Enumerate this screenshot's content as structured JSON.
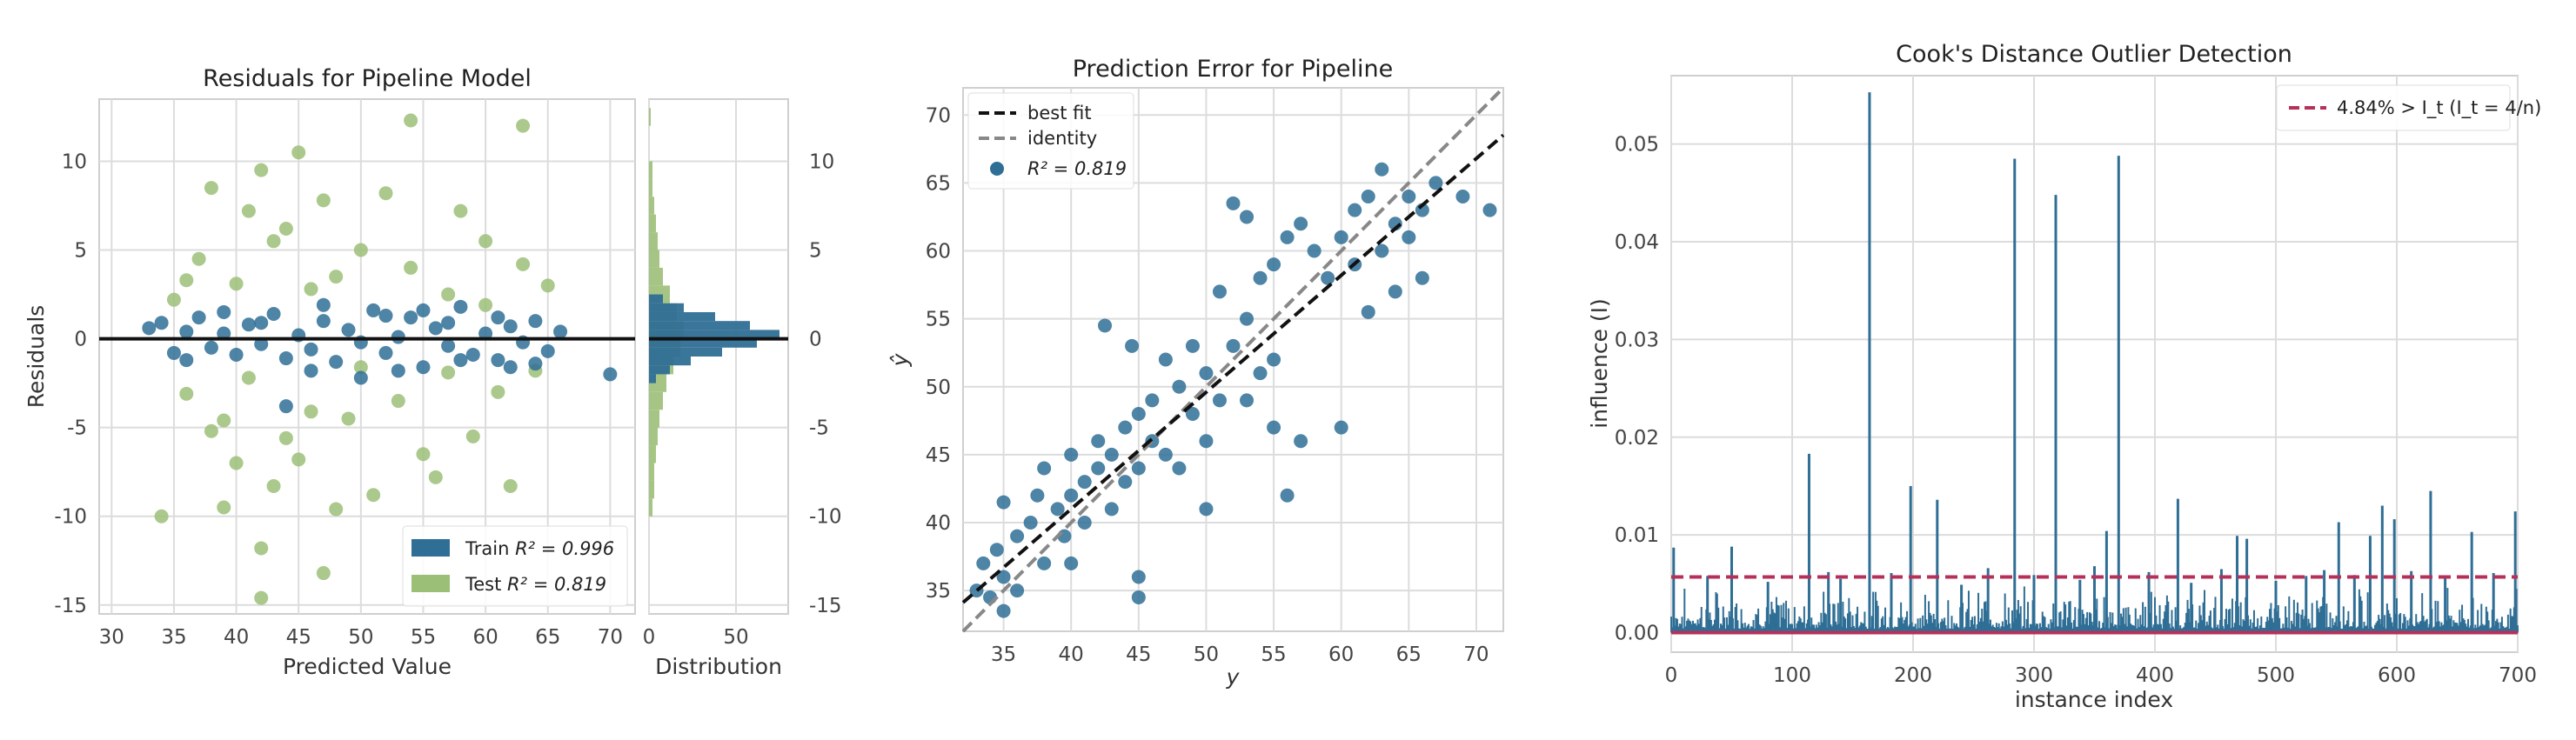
{
  "chart_data": [
    {
      "type": "scatter",
      "title": "Residuals for Pipeline Model",
      "xlabel": "Predicted Value",
      "ylabel": "Residuals",
      "xlim": [
        29,
        72
      ],
      "ylim": [
        -15.5,
        13.5
      ],
      "xticks": [
        "30",
        "35",
        "40",
        "45",
        "50",
        "55",
        "60",
        "65",
        "70"
      ],
      "yticks": [
        "-15",
        "-10",
        "-5",
        "0",
        "5",
        "10"
      ],
      "grid": true,
      "legend_position": "lower-right",
      "hline": 0,
      "series": [
        {
          "name": "Train $R^2 = 0.996$",
          "label_main": "Train ",
          "label_math": "R² = 0.996",
          "color": "#2f6e95",
          "points": [
            [
              33,
              0.6
            ],
            [
              34,
              0.9
            ],
            [
              35,
              -0.8
            ],
            [
              36,
              0.4
            ],
            [
              37,
              1.2
            ],
            [
              38,
              -0.5
            ],
            [
              39,
              0.3
            ],
            [
              40,
              -0.9
            ],
            [
              41,
              0.8
            ],
            [
              42,
              -0.3
            ],
            [
              43,
              1.4
            ],
            [
              44,
              -1.1
            ],
            [
              45,
              0.2
            ],
            [
              46,
              -0.6
            ],
            [
              47,
              1.0
            ],
            [
              48,
              -1.3
            ],
            [
              49,
              0.5
            ],
            [
              50,
              -0.2
            ],
            [
              51,
              1.6
            ],
            [
              52,
              -0.8
            ],
            [
              53,
              0.1
            ],
            [
              54,
              1.2
            ],
            [
              55,
              -1.6
            ],
            [
              56,
              0.6
            ],
            [
              57,
              -0.4
            ],
            [
              58,
              1.8
            ],
            [
              59,
              -0.9
            ],
            [
              60,
              0.3
            ],
            [
              61,
              -1.2
            ],
            [
              62,
              0.7
            ],
            [
              63,
              -0.2
            ],
            [
              64,
              1.0
            ],
            [
              65,
              -0.7
            ],
            [
              66,
              0.4
            ],
            [
              36,
              -1.2
            ],
            [
              39,
              1.5
            ],
            [
              44,
              -3.8
            ],
            [
              47,
              1.9
            ],
            [
              50,
              -2.2
            ],
            [
              53,
              -1.8
            ],
            [
              55,
              1.6
            ],
            [
              58,
              -1.2
            ],
            [
              62,
              -1.6
            ],
            [
              64,
              -1.4
            ],
            [
              70,
              -2.0
            ],
            [
              42,
              0.9
            ],
            [
              46,
              -1.8
            ],
            [
              52,
              1.3
            ],
            [
              57,
              0.9
            ],
            [
              61,
              1.2
            ]
          ]
        },
        {
          "name": "Test $R^2 = 0.819$",
          "label_main": "Test ",
          "label_math": "R² = 0.819",
          "color": "#9cbf78",
          "points": [
            [
              34,
              -10
            ],
            [
              35,
              2.2
            ],
            [
              36,
              -3.1
            ],
            [
              37,
              4.5
            ],
            [
              38,
              -5.2
            ],
            [
              38,
              8.5
            ],
            [
              39,
              -9.5
            ],
            [
              40,
              3.1
            ],
            [
              41,
              7.2
            ],
            [
              41,
              -2.2
            ],
            [
              42,
              -14.6
            ],
            [
              42,
              -11.8
            ],
            [
              42,
              9.5
            ],
            [
              43,
              5.5
            ],
            [
              43,
              -8.3
            ],
            [
              44,
              -5.6
            ],
            [
              44,
              6.2
            ],
            [
              45,
              -6.8
            ],
            [
              45,
              10.5
            ],
            [
              46,
              -4.1
            ],
            [
              46,
              2.8
            ],
            [
              47,
              -13.2
            ],
            [
              47,
              7.8
            ],
            [
              48,
              -9.6
            ],
            [
              48,
              3.5
            ],
            [
              49,
              -4.5
            ],
            [
              50,
              5.0
            ],
            [
              51,
              -8.8
            ],
            [
              52,
              8.2
            ],
            [
              53,
              -3.5
            ],
            [
              54,
              12.3
            ],
            [
              54,
              4.0
            ],
            [
              55,
              -6.5
            ],
            [
              56,
              -7.8
            ],
            [
              57,
              2.5
            ],
            [
              58,
              7.2
            ],
            [
              59,
              -5.5
            ],
            [
              60,
              5.5
            ],
            [
              61,
              -3.0
            ],
            [
              62,
              -8.3
            ],
            [
              63,
              12.0
            ],
            [
              64,
              -1.8
            ],
            [
              65,
              3.0
            ],
            [
              63,
              4.2
            ],
            [
              36,
              3.3
            ],
            [
              39,
              -4.6
            ],
            [
              50,
              -1.6
            ],
            [
              57,
              -1.9
            ],
            [
              60,
              1.9
            ],
            [
              40,
              -7.0
            ]
          ]
        }
      ]
    },
    {
      "type": "bar",
      "xlabel": "Distribution",
      "xticks": [
        "0",
        "50"
      ],
      "xlim": [
        0,
        80
      ],
      "series": [
        {
          "name": "Train",
          "color": "#2f6e95",
          "bins": [
            [
              -2.5,
              4
            ],
            [
              -2.0,
              12
            ],
            [
              -1.5,
              24
            ],
            [
              -1.0,
              42
            ],
            [
              -0.5,
              62
            ],
            [
              0.0,
              75
            ],
            [
              0.5,
              58
            ],
            [
              1.0,
              38
            ],
            [
              1.5,
              20
            ],
            [
              2.0,
              8
            ]
          ]
        },
        {
          "name": "Test",
          "color": "#9cbf78",
          "bins": [
            [
              -10,
              2
            ],
            [
              -9,
              3
            ],
            [
              -8,
              3
            ],
            [
              -7,
              4
            ],
            [
              -6,
              5
            ],
            [
              -5,
              6
            ],
            [
              -4,
              8
            ],
            [
              -3,
              10
            ],
            [
              -2,
              14
            ],
            [
              -1,
              18
            ],
            [
              0,
              20
            ],
            [
              1,
              16
            ],
            [
              2,
              12
            ],
            [
              3,
              8
            ],
            [
              4,
              6
            ],
            [
              5,
              5
            ],
            [
              6,
              4
            ],
            [
              7,
              3
            ],
            [
              8,
              2
            ],
            [
              9,
              2
            ],
            [
              12,
              1
            ]
          ]
        }
      ]
    },
    {
      "type": "scatter",
      "title": "Prediction Error for Pipeline",
      "xlabel": "y",
      "ylabel": "ŷ",
      "xlim": [
        32,
        72
      ],
      "ylim": [
        32,
        72
      ],
      "xticks": [
        "35",
        "40",
        "45",
        "50",
        "55",
        "60",
        "65",
        "70"
      ],
      "yticks": [
        "35",
        "40",
        "45",
        "50",
        "55",
        "60",
        "65",
        "70"
      ],
      "grid": true,
      "legend_position": "top-left",
      "legend": [
        "best fit",
        "identity",
        "R² = 0.819"
      ],
      "best_fit": {
        "slope": 0.86,
        "intercept": 6.6
      },
      "color": "#2f6e95",
      "points": [
        [
          33,
          35
        ],
        [
          33.5,
          37
        ],
        [
          34,
          34.5
        ],
        [
          34.5,
          38
        ],
        [
          35,
          36
        ],
        [
          35,
          41.5
        ],
        [
          36,
          39
        ],
        [
          36,
          35
        ],
        [
          37,
          40
        ],
        [
          37.5,
          42
        ],
        [
          38,
          37
        ],
        [
          38,
          44
        ],
        [
          39,
          41
        ],
        [
          39.5,
          39
        ],
        [
          40,
          42
        ],
        [
          40,
          45
        ],
        [
          41,
          43
        ],
        [
          41,
          40
        ],
        [
          42,
          44
        ],
        [
          42,
          46
        ],
        [
          42.5,
          54.5
        ],
        [
          43,
          45
        ],
        [
          43,
          41
        ],
        [
          44,
          47
        ],
        [
          44,
          43
        ],
        [
          44.5,
          53
        ],
        [
          45,
          48
        ],
        [
          45,
          44
        ],
        [
          45,
          34.5
        ],
        [
          46,
          49
        ],
        [
          46,
          46
        ],
        [
          47,
          52
        ],
        [
          47,
          45
        ],
        [
          48,
          50
        ],
        [
          48,
          44
        ],
        [
          49,
          48
        ],
        [
          49,
          53
        ],
        [
          50,
          51
        ],
        [
          50,
          46
        ],
        [
          51,
          57
        ],
        [
          51,
          49
        ],
        [
          52,
          63.5
        ],
        [
          52,
          53
        ],
        [
          53,
          55
        ],
        [
          53,
          49
        ],
        [
          54,
          58
        ],
        [
          54,
          51
        ],
        [
          55,
          59
        ],
        [
          55,
          47
        ],
        [
          56,
          61
        ],
        [
          56,
          42
        ],
        [
          57,
          62
        ],
        [
          57,
          46
        ],
        [
          58,
          60
        ],
        [
          59,
          58
        ],
        [
          60,
          61
        ],
        [
          60,
          47
        ],
        [
          61,
          63
        ],
        [
          61,
          59
        ],
        [
          62,
          64
        ],
        [
          62,
          55.5
        ],
        [
          63,
          66
        ],
        [
          63,
          60
        ],
        [
          64,
          62
        ],
        [
          64,
          57
        ],
        [
          65,
          64
        ],
        [
          65,
          61
        ],
        [
          66,
          63
        ],
        [
          66,
          58
        ],
        [
          67,
          65
        ],
        [
          69,
          64
        ],
        [
          71,
          63
        ],
        [
          53,
          62.5
        ],
        [
          45,
          36
        ],
        [
          40,
          37
        ],
        [
          50,
          41
        ],
        [
          35,
          33.5
        ],
        [
          55,
          52
        ]
      ]
    },
    {
      "type": "bar",
      "title": "Cook's Distance Outlier Detection",
      "xlabel": "instance index",
      "ylabel": "influence (I)",
      "xlim": [
        0,
        700
      ],
      "ylim": [
        -0.002,
        0.057
      ],
      "xticks": [
        "0",
        "100",
        "200",
        "300",
        "400",
        "500",
        "600",
        "700"
      ],
      "yticks": [
        "0.00",
        "0.01",
        "0.02",
        "0.03",
        "0.04",
        "0.05"
      ],
      "grid": true,
      "legend_position": "top-right",
      "legend": [
        "4.84% > I_t (I_t = 4/n)"
      ],
      "threshold": 0.0057,
      "color": "#2f6e95",
      "threshold_color": "#b5315a",
      "spikes": [
        [
          2,
          0.0087
        ],
        [
          50,
          0.0088
        ],
        [
          114,
          0.0183
        ],
        [
          164,
          0.0553
        ],
        [
          198,
          0.015
        ],
        [
          220,
          0.0136
        ],
        [
          284,
          0.0485
        ],
        [
          318,
          0.0448
        ],
        [
          360,
          0.0104
        ],
        [
          370,
          0.0488
        ],
        [
          419,
          0.0137
        ],
        [
          468,
          0.0099
        ],
        [
          476,
          0.0096
        ],
        [
          552,
          0.0113
        ],
        [
          578,
          0.0099
        ],
        [
          588,
          0.013
        ],
        [
          598,
          0.0116
        ],
        [
          628,
          0.0145
        ],
        [
          662,
          0.0103
        ],
        [
          698,
          0.0124
        ],
        [
          30,
          0.0058
        ],
        [
          80,
          0.0052
        ],
        [
          130,
          0.0062
        ],
        [
          140,
          0.0055
        ],
        [
          182,
          0.0061
        ],
        [
          240,
          0.0049
        ],
        [
          262,
          0.0066
        ],
        [
          300,
          0.0059
        ],
        [
          338,
          0.0054
        ],
        [
          350,
          0.0068
        ],
        [
          395,
          0.0062
        ],
        [
          430,
          0.0051
        ],
        [
          455,
          0.0065
        ],
        [
          500,
          0.0053
        ],
        [
          525,
          0.0058
        ],
        [
          540,
          0.0064
        ],
        [
          565,
          0.0059
        ],
        [
          612,
          0.0063
        ],
        [
          640,
          0.0057
        ],
        [
          680,
          0.0061
        ]
      ]
    }
  ]
}
